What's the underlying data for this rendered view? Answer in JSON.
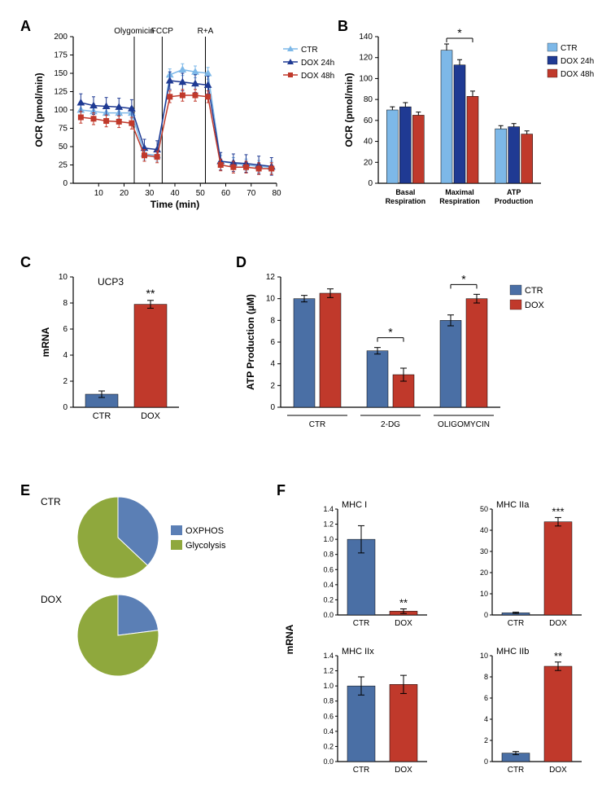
{
  "panelA": {
    "type": "line",
    "xlabel": "Time (min)",
    "ylabel": "OCR (pmol/min)",
    "xlim": [
      0,
      80
    ],
    "xtick_step": 10,
    "ylim": [
      0,
      200
    ],
    "ytick_step": 25,
    "label_fontsize": 12,
    "tick_fontsize": 10,
    "annotations": [
      {
        "label": "Olygomicin",
        "x": 24
      },
      {
        "label": "FCCP",
        "x": 35
      },
      {
        "label": "R+A",
        "x": 52
      }
    ],
    "series": [
      {
        "name": "CTR",
        "color": "#7db8e8",
        "marker": "triangle",
        "points": [
          [
            3,
            100
          ],
          [
            8,
            98
          ],
          [
            13,
            96
          ],
          [
            18,
            96
          ],
          [
            23,
            96
          ],
          [
            28,
            40
          ],
          [
            33,
            38
          ],
          [
            38,
            148
          ],
          [
            43,
            155
          ],
          [
            48,
            152
          ],
          [
            53,
            150
          ],
          [
            58,
            30
          ],
          [
            63,
            27
          ],
          [
            68,
            25
          ],
          [
            73,
            23
          ],
          [
            78,
            22
          ]
        ],
        "err": 8
      },
      {
        "name": "DOX 24h",
        "color": "#1f3a93",
        "marker": "triangle",
        "points": [
          [
            3,
            110
          ],
          [
            8,
            106
          ],
          [
            13,
            105
          ],
          [
            18,
            104
          ],
          [
            23,
            102
          ],
          [
            28,
            48
          ],
          [
            33,
            46
          ],
          [
            38,
            140
          ],
          [
            43,
            138
          ],
          [
            48,
            136
          ],
          [
            53,
            134
          ],
          [
            58,
            30
          ],
          [
            63,
            28
          ],
          [
            68,
            27
          ],
          [
            73,
            25
          ],
          [
            78,
            23
          ]
        ],
        "err": 12
      },
      {
        "name": "DOX 48h",
        "color": "#c0392b",
        "marker": "square",
        "points": [
          [
            3,
            90
          ],
          [
            8,
            88
          ],
          [
            13,
            85
          ],
          [
            18,
            84
          ],
          [
            23,
            82
          ],
          [
            28,
            38
          ],
          [
            33,
            36
          ],
          [
            38,
            118
          ],
          [
            43,
            120
          ],
          [
            48,
            120
          ],
          [
            53,
            118
          ],
          [
            58,
            25
          ],
          [
            63,
            22
          ],
          [
            68,
            22
          ],
          [
            73,
            20
          ],
          [
            78,
            20
          ]
        ],
        "err": 8
      }
    ]
  },
  "panelB": {
    "type": "bar",
    "ylabel": "OCR (pmol/min)",
    "ylim": [
      0,
      140
    ],
    "ytick_step": 20,
    "label_fontsize": 12,
    "tick_fontsize": 10,
    "groups": [
      "Basal\nRespiration",
      "Maximal\nRespiration",
      "ATP\nProduction"
    ],
    "series": [
      {
        "name": "CTR",
        "color": "#7db8e8",
        "values": [
          70,
          127,
          52
        ],
        "err": [
          3,
          6,
          3
        ]
      },
      {
        "name": "DOX  24h",
        "color": "#1f3a93",
        "values": [
          73,
          113,
          54
        ],
        "err": [
          4,
          5,
          3
        ]
      },
      {
        "name": "DOX  48h",
        "color": "#c0392b",
        "values": [
          65,
          83,
          47
        ],
        "err": [
          3,
          5,
          3
        ]
      }
    ],
    "sig": {
      "group": 1,
      "from": 0,
      "to": 2,
      "label": "*"
    }
  },
  "panelC": {
    "type": "bar",
    "title": "UCP3",
    "ylabel": "mRNA",
    "ylim": [
      0,
      10
    ],
    "ytick_step": 2,
    "categories": [
      "CTR",
      "DOX"
    ],
    "values": [
      1.0,
      7.9
    ],
    "err": [
      0.25,
      0.3
    ],
    "colors": [
      "#4a6fa5",
      "#c0392b"
    ],
    "sig": {
      "index": 1,
      "label": "**"
    }
  },
  "panelD": {
    "type": "bar",
    "ylabel": "ATP  Production (µM)",
    "ylim": [
      0,
      12
    ],
    "ytick_step": 2,
    "groups": [
      "CTR",
      "2-DG",
      "OLIGOMYCIN"
    ],
    "series": [
      {
        "name": "CTR",
        "color": "#4a6fa5",
        "values": [
          10.0,
          5.2,
          8.0
        ],
        "err": [
          0.3,
          0.3,
          0.5
        ]
      },
      {
        "name": "DOX",
        "color": "#c0392b",
        "values": [
          10.5,
          3.0,
          10.0
        ],
        "err": [
          0.4,
          0.6,
          0.4
        ]
      }
    ],
    "sigs": [
      {
        "group": 1,
        "label": "*"
      },
      {
        "group": 2,
        "label": "*"
      }
    ]
  },
  "panelE": {
    "type": "pie",
    "legend": [
      "OXPHOS",
      "Glycolysis"
    ],
    "colors": [
      "#5b7fb5",
      "#8fa83d"
    ],
    "pies": [
      {
        "label": "CTR",
        "values": [
          37,
          63
        ]
      },
      {
        "label": "DOX",
        "values": [
          23,
          77
        ]
      }
    ]
  },
  "panelF": {
    "type": "bar-grid",
    "ylabel": "mRNA",
    "categories": [
      "CTR",
      "DOX"
    ],
    "colors": [
      "#4a6fa5",
      "#c0392b"
    ],
    "charts": [
      {
        "title": "MHC I",
        "ylim": [
          0,
          1.4
        ],
        "ytick_step": 0.2,
        "values": [
          1.0,
          0.05
        ],
        "err": [
          0.18,
          0.03
        ],
        "sig": {
          "index": 1,
          "label": "**"
        }
      },
      {
        "title": "MHC IIa",
        "ylim": [
          0,
          50
        ],
        "ytick_step": 10,
        "values": [
          1.0,
          44
        ],
        "err": [
          0.3,
          2
        ],
        "sig": {
          "index": 1,
          "label": "***"
        }
      },
      {
        "title": "MHC IIx",
        "ylim": [
          0,
          1.4
        ],
        "ytick_step": 0.2,
        "values": [
          1.0,
          1.02
        ],
        "err": [
          0.12,
          0.12
        ],
        "sig": null
      },
      {
        "title": "MHC IIb",
        "ylim": [
          0,
          10
        ],
        "ytick_step": 2,
        "values": [
          0.8,
          9.0
        ],
        "err": [
          0.15,
          0.4
        ],
        "sig": {
          "index": 1,
          "label": "**"
        }
      }
    ]
  }
}
